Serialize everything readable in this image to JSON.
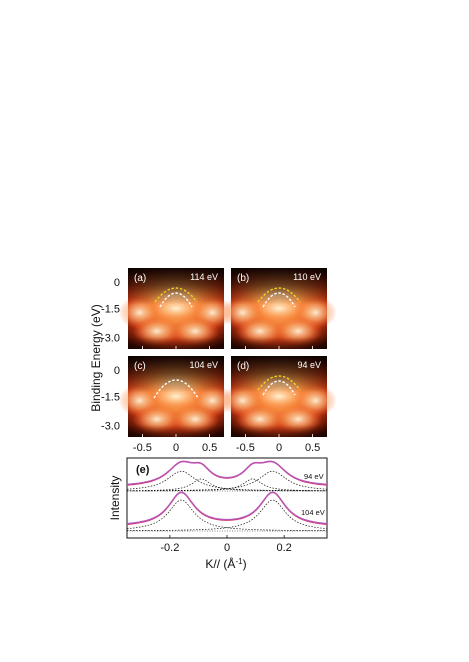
{
  "panels": [
    {
      "letter": "(a)",
      "energy": "114 eV",
      "bands": 2
    },
    {
      "letter": "(b)",
      "energy": "110 eV",
      "bands": 2
    },
    {
      "letter": "(c)",
      "energy": "104 eV",
      "bands": 1
    },
    {
      "letter": "(d)",
      "energy": "94 eV",
      "bands": 2
    }
  ],
  "arpes": {
    "ylabel": "Binding Energy (eV)",
    "yticks": [
      "0",
      "-1.5",
      "-3.0"
    ],
    "xticks": [
      "-0.5",
      "0",
      "0.5"
    ]
  },
  "mdc": {
    "letter": "(e)",
    "ylabel": "Intensity",
    "xlabel": "K//",
    "xlabel_unit": " (Å",
    "xlabel_sup": "-1",
    "xlabel_close": ")",
    "xticks": [
      "-0.2",
      "0",
      "0.2"
    ],
    "curves": [
      {
        "energy": "94 eV"
      },
      {
        "energy": "104 eV"
      }
    ]
  },
  "colors": {
    "band_white": "#ffffff",
    "band_yellow": "#f2d21a",
    "fit": "#b05ac8",
    "data": "#d0407a"
  }
}
